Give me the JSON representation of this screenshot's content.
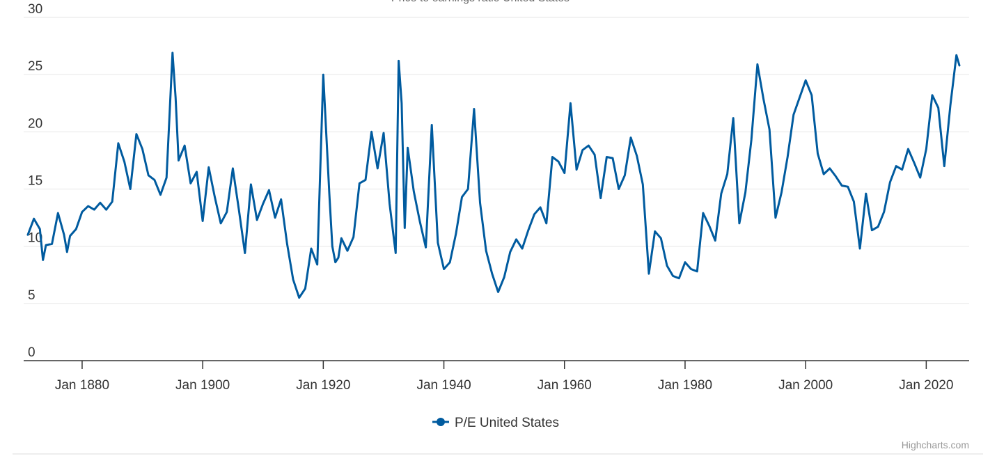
{
  "chart_data": {
    "type": "line",
    "title": "",
    "xlabel": "",
    "ylabel": "",
    "ylim": [
      0,
      30
    ],
    "yticks": [
      "0",
      "5",
      "10",
      "15",
      "20",
      "25",
      "30"
    ],
    "xlim": [
      1871.0,
      2025.5
    ],
    "xticks": [
      {
        "year": 1880,
        "label": "Jan 1880"
      },
      {
        "year": 1900,
        "label": "Jan 1900"
      },
      {
        "year": 1920,
        "label": "Jan 1920"
      },
      {
        "year": 1940,
        "label": "Jan 1940"
      },
      {
        "year": 1960,
        "label": "Jan 1960"
      },
      {
        "year": 1980,
        "label": "Jan 1980"
      },
      {
        "year": 2000,
        "label": "Jan 2000"
      },
      {
        "year": 2020,
        "label": "Jan 2020"
      }
    ],
    "grid": true,
    "legend_position": "bottom-center",
    "series": [
      {
        "name": "P/E United States",
        "color": "#005b9f",
        "x": [
          1871.0,
          1872.0,
          1873.0,
          1873.5,
          1874.0,
          1875.0,
          1876.0,
          1877.0,
          1877.5,
          1878.0,
          1879.0,
          1880.0,
          1881.0,
          1882.0,
          1883.0,
          1884.0,
          1885.0,
          1886.0,
          1887.0,
          1888.0,
          1889.0,
          1890.0,
          1891.0,
          1892.0,
          1893.0,
          1894.0,
          1895.0,
          1895.5,
          1896.0,
          1897.0,
          1898.0,
          1899.0,
          1900.0,
          1901.0,
          1902.0,
          1903.0,
          1904.0,
          1905.0,
          1906.0,
          1907.0,
          1908.0,
          1909.0,
          1910.0,
          1911.0,
          1912.0,
          1913.0,
          1914.0,
          1915.0,
          1916.0,
          1917.0,
          1918.0,
          1919.0,
          1920.0,
          1921.0,
          1921.5,
          1922.0,
          1922.5,
          1923.0,
          1924.0,
          1925.0,
          1926.0,
          1927.0,
          1928.0,
          1929.0,
          1930.0,
          1931.0,
          1932.0,
          1932.5,
          1933.0,
          1933.5,
          1934.0,
          1935.0,
          1936.0,
          1937.0,
          1938.0,
          1939.0,
          1940.0,
          1941.0,
          1942.0,
          1943.0,
          1944.0,
          1945.0,
          1946.0,
          1947.0,
          1948.0,
          1949.0,
          1950.0,
          1951.0,
          1952.0,
          1953.0,
          1954.0,
          1955.0,
          1956.0,
          1957.0,
          1958.0,
          1959.0,
          1960.0,
          1961.0,
          1962.0,
          1963.0,
          1964.0,
          1965.0,
          1966.0,
          1967.0,
          1968.0,
          1969.0,
          1970.0,
          1971.0,
          1972.0,
          1973.0,
          1974.0,
          1975.0,
          1976.0,
          1977.0,
          1978.0,
          1979.0,
          1980.0,
          1981.0,
          1982.0,
          1983.0,
          1984.0,
          1985.0,
          1986.0,
          1987.0,
          1988.0,
          1989.0,
          1990.0,
          1991.0,
          1992.0,
          1993.0,
          1994.0,
          1995.0,
          1996.0,
          1997.0,
          1998.0,
          1999.0,
          2000.0,
          2001.0,
          2002.0,
          2003.0,
          2004.0,
          2005.0,
          2006.0,
          2007.0,
          2008.0,
          2009.0,
          2010.0,
          2011.0,
          2012.0,
          2013.0,
          2014.0,
          2015.0,
          2016.0,
          2017.0,
          2018.0,
          2019.0,
          2020.0,
          2021.0,
          2022.0,
          2023.0,
          2024.0,
          2025.0,
          2025.5
        ],
        "y": [
          11.0,
          12.4,
          11.5,
          8.8,
          10.1,
          10.2,
          12.9,
          11.0,
          9.5,
          10.9,
          11.5,
          13.0,
          13.5,
          13.2,
          13.8,
          13.2,
          13.9,
          19.0,
          17.4,
          15.0,
          19.8,
          18.5,
          16.2,
          15.8,
          14.5,
          16.0,
          26.9,
          23.0,
          17.5,
          18.8,
          15.5,
          16.5,
          12.2,
          16.9,
          14.3,
          12.0,
          13.0,
          16.8,
          13.2,
          9.4,
          15.4,
          12.3,
          13.7,
          14.9,
          12.5,
          14.1,
          10.2,
          7.1,
          5.5,
          6.3,
          9.8,
          8.4,
          25.0,
          14.6,
          10.0,
          8.6,
          9.0,
          10.7,
          9.6,
          10.8,
          15.5,
          15.8,
          20.0,
          16.8,
          19.9,
          13.7,
          9.4,
          26.2,
          22.5,
          11.6,
          18.6,
          14.8,
          12.2,
          9.9,
          20.6,
          10.3,
          8.0,
          8.6,
          11.1,
          14.3,
          15.0,
          22.0,
          13.8,
          9.6,
          7.6,
          6.0,
          7.3,
          9.5,
          10.6,
          9.8,
          11.4,
          12.8,
          13.4,
          12.0,
          17.8,
          17.4,
          16.4,
          22.5,
          16.7,
          18.4,
          18.8,
          18.0,
          14.2,
          17.8,
          17.7,
          15.0,
          16.2,
          19.5,
          17.9,
          15.4,
          7.6,
          11.3,
          10.7,
          8.3,
          7.4,
          7.2,
          8.6,
          8.0,
          7.8,
          12.9,
          11.8,
          10.5,
          14.6,
          16.3,
          21.2,
          12.0,
          14.7,
          19.3,
          25.9,
          22.9,
          20.2,
          12.5,
          14.7,
          17.8,
          21.5,
          23.0,
          24.5,
          23.2,
          18.1,
          16.3,
          16.8,
          16.1,
          15.3,
          15.2,
          13.9,
          9.8,
          14.6,
          11.4,
          11.7,
          13.0,
          15.6,
          17.0,
          16.7,
          18.5,
          17.3,
          16.0,
          18.5,
          23.2,
          22.1,
          17.0,
          22.3,
          26.7,
          25.8
        ]
      }
    ]
  },
  "header": {
    "subtitle_cut": "Price to earnings ratio United States"
  },
  "legend": {
    "items": [
      {
        "label": "P/E United States",
        "color": "#005b9f"
      }
    ]
  },
  "credits": {
    "text": "Highcharts.com"
  }
}
